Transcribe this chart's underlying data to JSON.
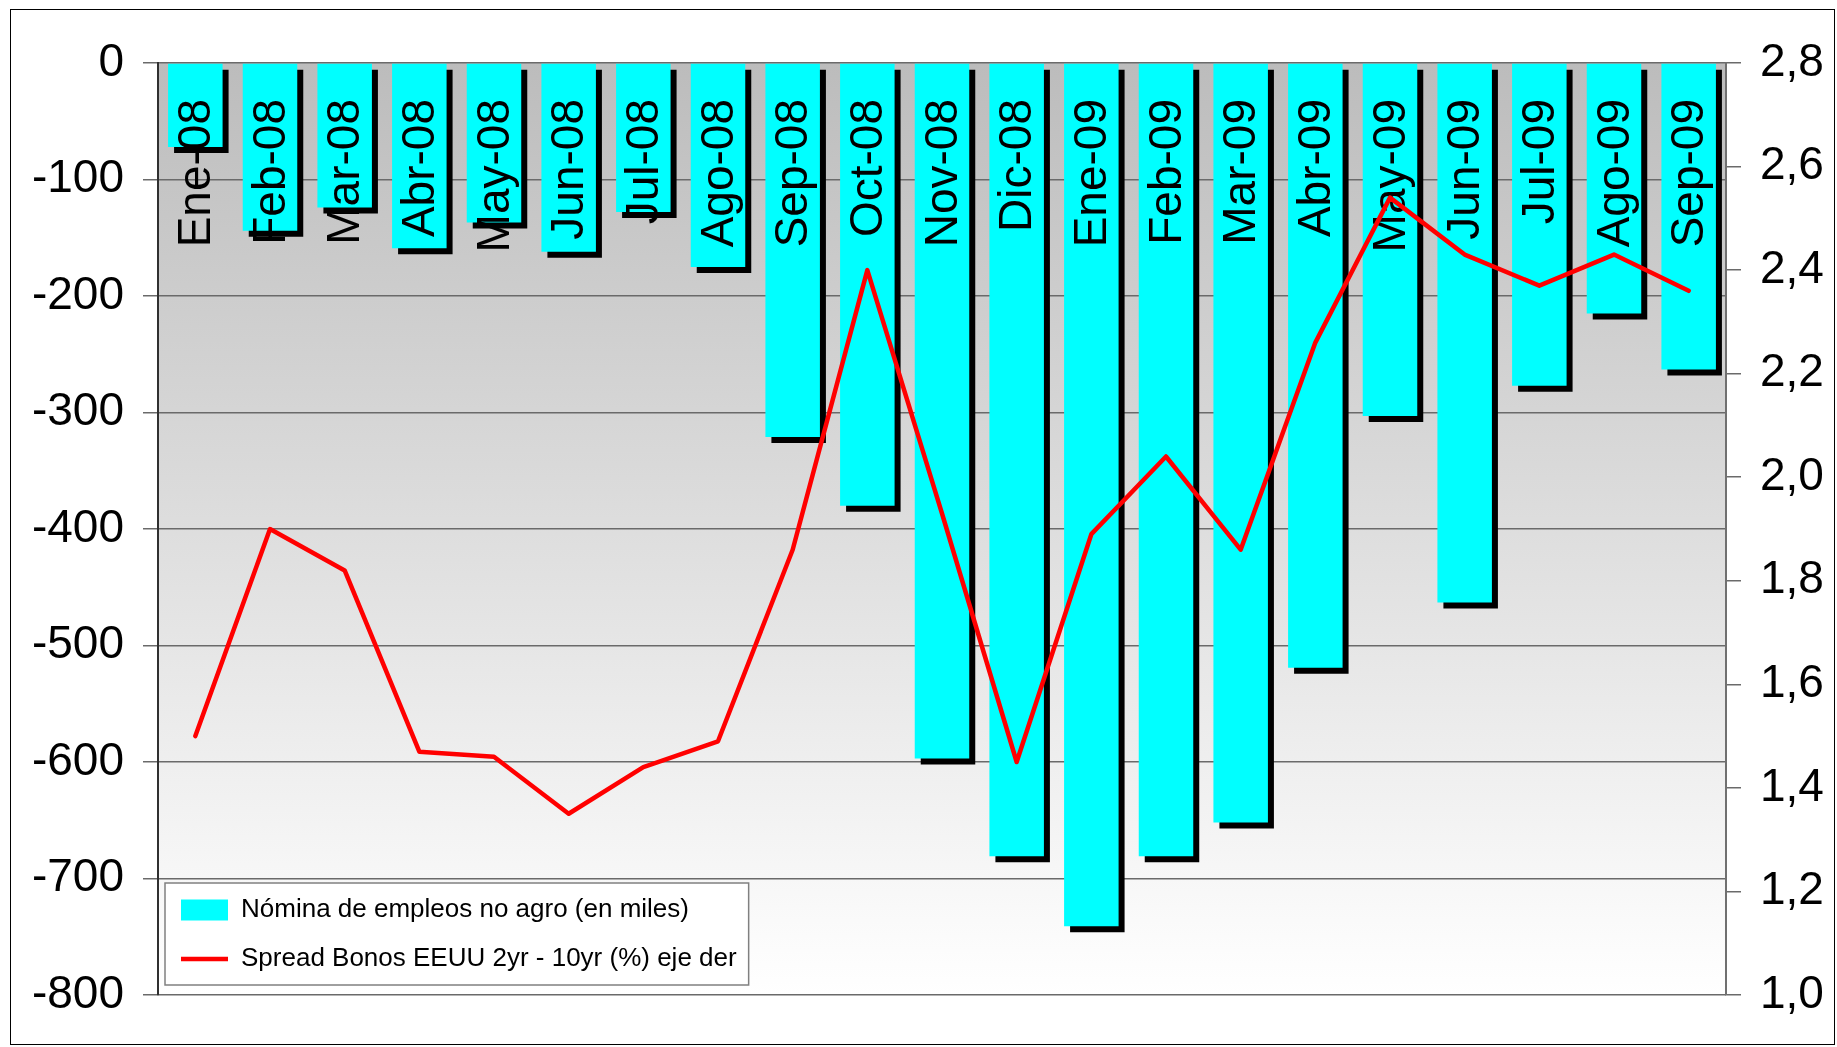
{
  "chart_data": {
    "type": "bar",
    "categories": [
      "Ene-08",
      "Feb-08",
      "Mar-08",
      "Abr-08",
      "May-08",
      "Jun-08",
      "Jul-08",
      "Ago-08",
      "Sep-08",
      "Oct-08",
      "Nov-08",
      "Dic-08",
      "Ene-09",
      "Feb-09",
      "Mar-09",
      "Abr-09",
      "May-09",
      "Jun-09",
      "Jul-09",
      "Ago-09",
      "Sep-09"
    ],
    "series": [
      {
        "name": "Nómina de empleos no agro (en miles)",
        "color": "#00ffff",
        "values": [
          -72,
          -144,
          -124,
          -159,
          -137,
          -162,
          -128,
          -175,
          -321,
          -380,
          -597,
          -681,
          -741,
          -681,
          -652,
          -519,
          -303,
          -463,
          -277,
          -215,
          -263
        ]
      },
      {
        "name": "Spread Bonos EEUU 2yr - 10yr (%) eje der",
        "type": "line",
        "axis": "y2",
        "color": "#ff0000",
        "values": [
          1.5,
          1.9,
          1.82,
          1.47,
          1.46,
          1.35,
          1.44,
          1.49,
          1.86,
          2.4,
          1.93,
          1.45,
          1.89,
          2.04,
          1.86,
          2.26,
          2.54,
          2.43,
          2.37,
          2.43,
          2.36
        ]
      }
    ],
    "ylim": [
      -800,
      0
    ],
    "yticks": [
      -800,
      -700,
      -600,
      -500,
      -400,
      -300,
      -200,
      -100,
      0
    ],
    "y2lim": [
      1.0,
      2.8
    ],
    "y2ticks": [
      {
        "value": 1.0,
        "label": "1,0"
      },
      {
        "value": 1.2,
        "label": "1,2"
      },
      {
        "value": 1.4,
        "label": "1,4"
      },
      {
        "value": 1.6,
        "label": "1,6"
      },
      {
        "value": 1.8,
        "label": "1,8"
      },
      {
        "value": 2.0,
        "label": "2,0"
      },
      {
        "value": 2.2,
        "label": "2,2"
      },
      {
        "value": 2.4,
        "label": "2,4"
      },
      {
        "value": 2.6,
        "label": "2,6"
      },
      {
        "value": 2.8,
        "label": "2,8"
      }
    ],
    "grid": "y",
    "legend": "bottom left",
    "marker": "none",
    "line_style": "solid"
  }
}
